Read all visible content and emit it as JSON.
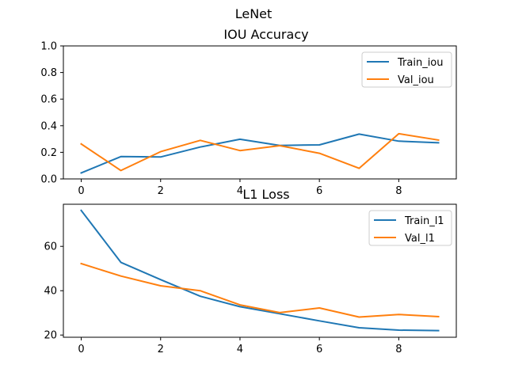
{
  "figure": {
    "suptitle": "LeNet"
  },
  "chart_data": [
    {
      "type": "line",
      "title": "IOU Accuracy",
      "x": [
        0,
        1,
        2,
        3,
        4,
        5,
        6,
        7,
        8,
        9
      ],
      "xticks": [
        0,
        2,
        4,
        6,
        8
      ],
      "xlim": [
        -0.45,
        9.45
      ],
      "ylim": [
        0.0,
        1.0
      ],
      "yticks": [
        "0.0",
        "0.2",
        "0.4",
        "0.6",
        "0.8",
        "1.0"
      ],
      "ytick_values": [
        0.0,
        0.2,
        0.4,
        0.6,
        0.8,
        1.0
      ],
      "legend_position": "top-right",
      "grid": false,
      "series": [
        {
          "name": "Train_iou",
          "color": "#1f77b4",
          "values": [
            0.045,
            0.168,
            0.165,
            0.24,
            0.298,
            0.252,
            0.256,
            0.337,
            0.284,
            0.272
          ]
        },
        {
          "name": "Val_iou",
          "color": "#ff7f0e",
          "values": [
            0.263,
            0.063,
            0.205,
            0.29,
            0.213,
            0.25,
            0.193,
            0.08,
            0.34,
            0.292
          ]
        }
      ]
    },
    {
      "type": "line",
      "title": "L1 Loss",
      "x": [
        0,
        1,
        2,
        3,
        4,
        5,
        6,
        7,
        8,
        9
      ],
      "xticks": [
        0,
        2,
        4,
        6,
        8
      ],
      "xlim": [
        -0.45,
        9.45
      ],
      "ylim": [
        19.0,
        79.0
      ],
      "yticks": [
        "20",
        "40",
        "60"
      ],
      "ytick_values": [
        20,
        40,
        60
      ],
      "legend_position": "top-right",
      "grid": false,
      "series": [
        {
          "name": "Train_l1",
          "color": "#1f77b4",
          "values": [
            76.2,
            52.8,
            45.0,
            37.5,
            32.8,
            29.6,
            26.4,
            23.3,
            22.2,
            22.0
          ]
        },
        {
          "name": "Val_l1",
          "color": "#ff7f0e",
          "values": [
            52.2,
            46.6,
            42.2,
            40.0,
            33.6,
            30.1,
            32.2,
            28.1,
            29.3,
            28.3
          ]
        }
      ]
    }
  ]
}
